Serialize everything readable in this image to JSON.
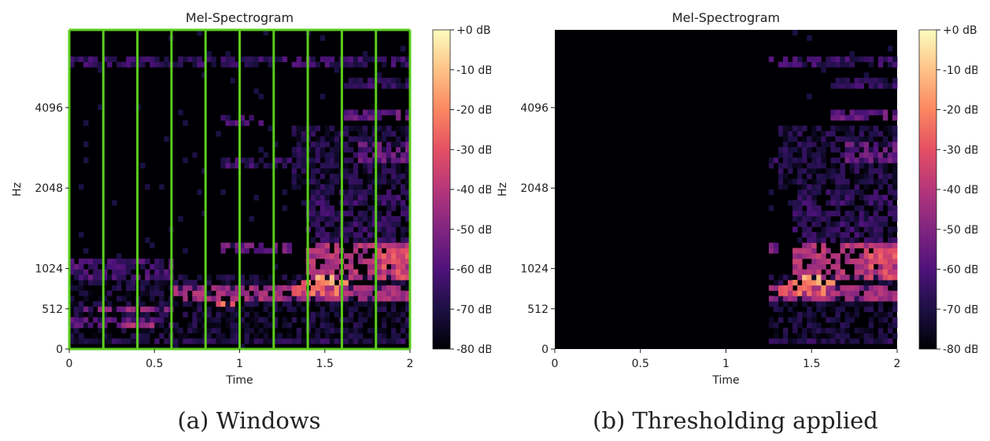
{
  "chart_data": [
    {
      "type": "heatmap",
      "title": "Mel-Spectrogram",
      "xlabel": "Time",
      "ylabel": "Hz",
      "caption": "(a) Windows",
      "xlim": [
        0,
        2
      ],
      "ylim": [
        0,
        8000
      ],
      "y_scale": "mel (symlog, linear below 1024)",
      "xticks": [
        "0",
        "0.5",
        "1",
        "1.5",
        "2"
      ],
      "xtick_values": [
        0,
        0.5,
        1,
        1.5,
        2
      ],
      "yticks": [
        "0",
        "512",
        "1024",
        "2048",
        "4096"
      ],
      "ytick_values": [
        0,
        512,
        1024,
        2048,
        4096
      ],
      "colorbar": {
        "ticks": [
          "+0 dB",
          "-10 dB",
          "-20 dB",
          "-30 dB",
          "-40 dB",
          "-50 dB",
          "-60 dB",
          "-70 dB",
          "-80 dB"
        ],
        "range_db": [
          -80,
          0
        ],
        "colormap": "magma"
      },
      "windows": {
        "color": "#5ccc1e",
        "boundaries": [
          0,
          0.2,
          0.4,
          0.6,
          0.8,
          1.0,
          1.2,
          1.4,
          1.6,
          1.8,
          2.0
        ]
      },
      "threshold_start": null
    },
    {
      "type": "heatmap",
      "title": "Mel-Spectrogram",
      "xlabel": "Time",
      "ylabel": "Hz",
      "caption": "(b) Thresholding applied",
      "xlim": [
        0,
        2
      ],
      "ylim": [
        0,
        8000
      ],
      "y_scale": "mel (symlog, linear below 1024)",
      "xticks": [
        "0",
        "0.5",
        "1",
        "1.5",
        "2"
      ],
      "xtick_values": [
        0,
        0.5,
        1,
        1.5,
        2
      ],
      "yticks": [
        "0",
        "512",
        "1024",
        "2048",
        "4096"
      ],
      "ytick_values": [
        0,
        512,
        1024,
        2048,
        4096
      ],
      "colorbar": {
        "ticks": [
          "+0 dB",
          "-10 dB",
          "-20 dB",
          "-30 dB",
          "-40 dB",
          "-50 dB",
          "-60 dB",
          "-70 dB",
          "-80 dB"
        ],
        "range_db": [
          -80,
          0
        ],
        "colormap": "magma"
      },
      "windows": null,
      "threshold_start": 1.25
    }
  ],
  "spectrogram_features": [
    {
      "t": [
        0,
        2
      ],
      "f": [
        5800,
        6300
      ],
      "db": -58
    },
    {
      "t": [
        0,
        2
      ],
      "f": [
        40,
        120
      ],
      "db": -62
    },
    {
      "t": [
        0,
        2
      ],
      "f": [
        100,
        950
      ],
      "db": -66
    },
    {
      "t": [
        0,
        0.6
      ],
      "f": [
        900,
        1100
      ],
      "db": -55
    },
    {
      "t": [
        0,
        0.6
      ],
      "f": [
        480,
        560
      ],
      "db": -45
    },
    {
      "t": [
        0,
        0.6
      ],
      "f": [
        280,
        380
      ],
      "db": -52
    },
    {
      "t": [
        0.3,
        0.5
      ],
      "f": [
        290,
        360
      ],
      "db": -35
    },
    {
      "t": [
        0.3,
        0.5
      ],
      "f": [
        500,
        540
      ],
      "db": -38
    },
    {
      "t": [
        0.6,
        2.0
      ],
      "f": [
        600,
        800
      ],
      "db": -38
    },
    {
      "t": [
        0.85,
        0.97
      ],
      "f": [
        540,
        600
      ],
      "db": -20
    },
    {
      "t": [
        0.85,
        1.3
      ],
      "f": [
        1150,
        1300
      ],
      "db": -48
    },
    {
      "t": [
        0.9,
        1.15
      ],
      "f": [
        3500,
        3800
      ],
      "db": -55
    },
    {
      "t": [
        0.9,
        1.3
      ],
      "f": [
        2450,
        2700
      ],
      "db": -58
    },
    {
      "t": [
        1.3,
        1.65
      ],
      "f": [
        650,
        900
      ],
      "db": -18
    },
    {
      "t": [
        1.45,
        1.55
      ],
      "f": [
        800,
        950
      ],
      "db": -10
    },
    {
      "t": [
        1.4,
        2.0
      ],
      "f": [
        900,
        1300
      ],
      "db": -35
    },
    {
      "t": [
        1.8,
        2.0
      ],
      "f": [
        850,
        1250
      ],
      "db": -25
    },
    {
      "t": [
        1.4,
        2.0
      ],
      "f": [
        1300,
        2000
      ],
      "db": -60
    },
    {
      "t": [
        1.6,
        2.0
      ],
      "f": [
        3700,
        4100
      ],
      "db": -50
    },
    {
      "t": [
        1.7,
        2.0
      ],
      "f": [
        2600,
        3000
      ],
      "db": -50
    },
    {
      "t": [
        1.6,
        2.0
      ],
      "f": [
        4800,
        5200
      ],
      "db": -60
    },
    {
      "t": [
        1.3,
        2.0
      ],
      "f": [
        2000,
        3500
      ],
      "db": -64
    }
  ]
}
